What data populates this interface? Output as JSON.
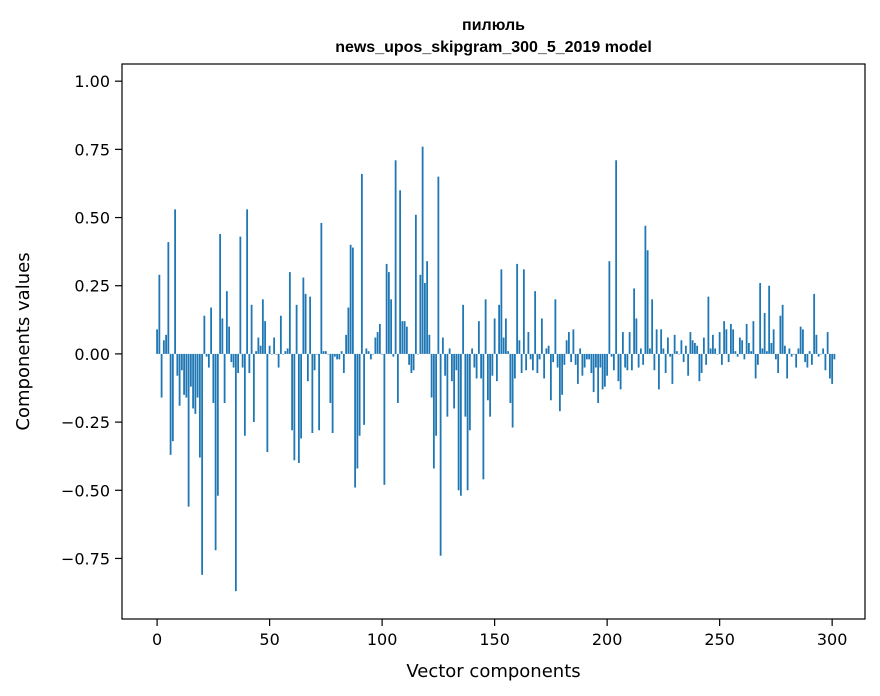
{
  "chart_data": {
    "type": "bar",
    "title_line1": "пилюль",
    "title_line2": "news_upos_skipgram_300_5_2019 model",
    "xlabel": "Vector components",
    "ylabel": "Components values",
    "xlim": [
      -15.6,
      314.6
    ],
    "ylim": [
      -0.972,
      1.063
    ],
    "xticks": [
      0,
      50,
      100,
      150,
      200,
      250,
      300
    ],
    "xtick_labels": [
      "0",
      "50",
      "100",
      "150",
      "200",
      "250",
      "300"
    ],
    "yticks": [
      -0.75,
      -0.5,
      -0.25,
      0.0,
      0.25,
      0.5,
      0.75,
      1.0
    ],
    "ytick_labels": [
      "−0.75",
      "−0.50",
      "−0.25",
      "0.00",
      "0.25",
      "0.50",
      "0.75",
      "1.00"
    ],
    "bar_color": "#1f77b4",
    "values": [
      0.09,
      0.29,
      -0.16,
      0.05,
      0.07,
      0.41,
      -0.37,
      -0.32,
      0.53,
      -0.08,
      -0.19,
      -0.06,
      -0.15,
      -0.16,
      -0.56,
      -0.12,
      -0.2,
      -0.22,
      -0.16,
      -0.38,
      -0.81,
      0.14,
      -0.01,
      -0.05,
      0.17,
      -0.18,
      -0.72,
      -0.52,
      0.44,
      0.13,
      -0.18,
      0.23,
      0.1,
      -0.03,
      -0.05,
      -0.87,
      -0.07,
      0.43,
      -0.05,
      -0.3,
      0.53,
      -0.07,
      0.18,
      -0.25,
      0.01,
      0.06,
      0.03,
      0.2,
      0.12,
      -0.36,
      0.03,
      0.0,
      0.06,
      0.0,
      -0.05,
      0.14,
      0.0,
      0.01,
      0.02,
      0.3,
      -0.28,
      -0.39,
      0.18,
      -0.4,
      -0.31,
      0.28,
      0.22,
      -0.1,
      0.21,
      -0.29,
      -0.06,
      0.0,
      -0.28,
      0.48,
      0.01,
      0.01,
      0.0,
      -0.18,
      -0.29,
      -0.01,
      -0.02,
      -0.02,
      0.01,
      -0.07,
      0.07,
      0.17,
      0.4,
      0.39,
      -0.49,
      -0.42,
      -0.3,
      0.66,
      -0.26,
      0.02,
      0.01,
      -0.02,
      0.0,
      0.06,
      0.08,
      0.11,
      0.0,
      -0.48,
      0.33,
      0.3,
      0.2,
      -0.01,
      0.71,
      -0.18,
      0.6,
      0.12,
      0.12,
      0.1,
      -0.04,
      -0.07,
      -0.06,
      0.51,
      0.0,
      0.29,
      0.76,
      0.26,
      0.34,
      0.07,
      -0.16,
      -0.42,
      -0.3,
      0.65,
      -0.74,
      0.06,
      -0.08,
      -0.23,
      0.02,
      -0.1,
      -0.2,
      -0.06,
      -0.5,
      -0.52,
      0.18,
      -0.23,
      -0.5,
      -0.28,
      0.02,
      -0.05,
      -0.09,
      0.12,
      -0.09,
      -0.46,
      0.2,
      -0.17,
      -0.23,
      -0.08,
      0.13,
      -0.1,
      0.18,
      0.31,
      0.06,
      0.13,
      0.01,
      -0.18,
      -0.27,
      -0.09,
      0.33,
      0.05,
      -0.07,
      0.31,
      -0.06,
      0.08,
      -0.02,
      -0.06,
      0.23,
      -0.07,
      -0.02,
      0.13,
      -0.09,
      0.02,
      0.03,
      -0.17,
      -0.03,
      0.2,
      -0.05,
      -0.21,
      -0.15,
      -0.04,
      0.05,
      0.08,
      -0.03,
      0.09,
      -0.04,
      -0.11,
      0.02,
      -0.08,
      -0.05,
      -0.02,
      -0.02,
      -0.07,
      -0.14,
      -0.05,
      -0.18,
      -0.05,
      -0.13,
      -0.12,
      -0.08,
      0.34,
      -0.01,
      -0.06,
      0.71,
      -0.1,
      -0.13,
      0.08,
      -0.05,
      -0.06,
      0.08,
      -0.06,
      0.24,
      0.13,
      -0.05,
      0.02,
      -0.04,
      0.47,
      0.38,
      0.02,
      0.2,
      -0.06,
      0.09,
      -0.13,
      0.09,
      0.02,
      -0.07,
      0.06,
      -0.01,
      -0.11,
      0.07,
      0.01,
      0.0,
      0.05,
      -0.03,
      0.03,
      -0.08,
      0.08,
      0.05,
      0.04,
      0.03,
      -0.1,
      -0.07,
      0.06,
      -0.04,
      0.21,
      0.02,
      0.07,
      0.02,
      0.0,
      0.08,
      -0.04,
      0.12,
      0.09,
      -0.03,
      0.11,
      0.09,
      0.01,
      -0.01,
      0.06,
      0.05,
      -0.02,
      0.11,
      0.04,
      0.01,
      0.12,
      -0.09,
      -0.04,
      0.26,
      0.02,
      0.15,
      0.01,
      0.25,
      0.04,
      0.09,
      -0.02,
      -0.07,
      0.14,
      0.18,
      0.03,
      -0.09,
      0.02,
      -0.01,
      0.0,
      -0.05,
      0.02,
      0.1,
      0.09,
      -0.03,
      -0.05,
      0.01,
      -0.04,
      0.22,
      0.07,
      -0.01,
      0.0,
      0.02,
      -0.06,
      0.08,
      -0.09,
      -0.11,
      -0.02
    ]
  }
}
